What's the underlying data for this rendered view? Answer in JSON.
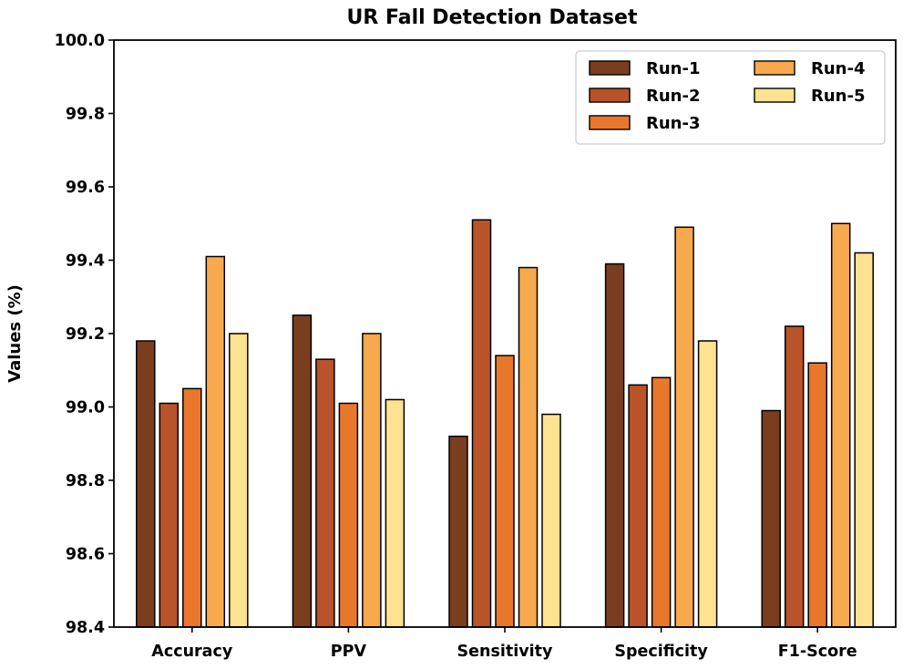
{
  "chart_data": {
    "type": "bar",
    "title": "UR Fall Detection Dataset",
    "xlabel": "",
    "ylabel": "Values (%)",
    "ylim": [
      98.4,
      100.0
    ],
    "yticks": [
      "98.4",
      "98.6",
      "98.8",
      "99.0",
      "99.2",
      "99.4",
      "99.6",
      "99.8",
      "100.0"
    ],
    "categories": [
      "Accuracy",
      "PPV",
      "Sensitivity",
      "Specificity",
      "F1-Score"
    ],
    "grid": false,
    "legend_position": "top-right",
    "series": [
      {
        "name": "Run-1",
        "color": "#7a3e1f",
        "values": [
          99.18,
          99.25,
          98.92,
          99.39,
          98.99
        ]
      },
      {
        "name": "Run-2",
        "color": "#b9532a",
        "values": [
          99.01,
          99.13,
          99.51,
          99.06,
          99.22
        ]
      },
      {
        "name": "Run-3",
        "color": "#e8772c",
        "values": [
          99.05,
          99.01,
          99.14,
          99.08,
          99.12
        ]
      },
      {
        "name": "Run-4",
        "color": "#f8a94e",
        "values": [
          99.41,
          99.2,
          99.38,
          99.49,
          99.5
        ]
      },
      {
        "name": "Run-5",
        "color": "#fde28f",
        "values": [
          99.2,
          99.02,
          98.98,
          99.18,
          99.42
        ]
      }
    ]
  }
}
